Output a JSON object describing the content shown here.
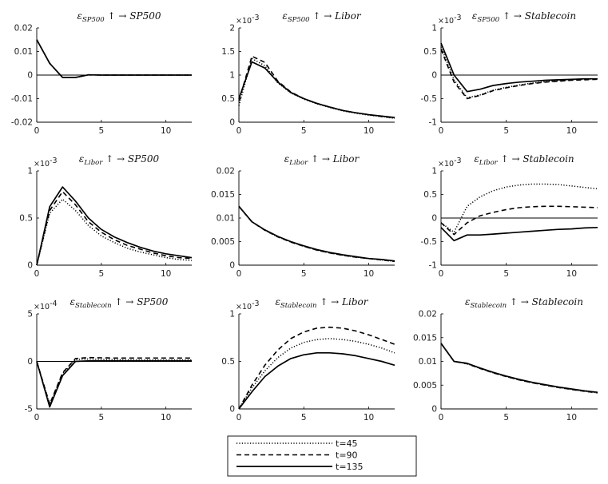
{
  "chart_data": {
    "type": "line",
    "x": [
      0,
      1,
      2,
      3,
      4,
      5,
      6,
      7,
      8,
      9,
      10,
      11,
      12
    ],
    "legend": {
      "placement": "bottom-center",
      "entries": [
        {
          "label": "t=45",
          "style": "dotted"
        },
        {
          "label": "t=90",
          "style": "dashed"
        },
        {
          "label": "t=135",
          "style": "solid"
        }
      ]
    },
    "panels": [
      {
        "title": {
          "eps": "ε",
          "sub": "SP500",
          "arrow": "↑ →",
          "target": "SP500"
        },
        "xlim": [
          0,
          12
        ],
        "ylim": [
          -0.02,
          0.02
        ],
        "scale": "",
        "yticks": [
          "0.02",
          "0.01",
          "0",
          "-0.01",
          "-0.02"
        ],
        "xticks": [
          "0",
          "5",
          "10"
        ],
        "zero_line": true,
        "series": [
          {
            "name": "t=45",
            "values": [
              0.015,
              0.005,
              -0.001,
              -0.001,
              0.0001,
              0,
              0,
              0,
              0,
              0,
              0,
              0,
              0
            ]
          },
          {
            "name": "t=90",
            "values": [
              0.015,
              0.005,
              -0.001,
              -0.001,
              0.0001,
              0,
              0,
              0,
              0,
              0,
              0,
              0,
              0
            ]
          },
          {
            "name": "t=135",
            "values": [
              0.015,
              0.005,
              -0.001,
              -0.001,
              0.0001,
              0,
              0,
              0,
              0,
              0,
              0,
              0,
              0
            ]
          }
        ]
      },
      {
        "title": {
          "eps": "ε",
          "sub": "SP500",
          "arrow": "↑ →",
          "target": "Libor"
        },
        "xlim": [
          0,
          12
        ],
        "ylim": [
          0,
          2
        ],
        "scale": "×10",
        "scale_exp": "-3",
        "yticks": [
          "2",
          "1.5",
          "1",
          "0.5",
          "0"
        ],
        "xticks": [
          "0",
          "5",
          "10"
        ],
        "zero_line": false,
        "series": [
          {
            "name": "t=45",
            "values": [
              0.35,
              1.35,
              1.2,
              0.83,
              0.62,
              0.49,
              0.39,
              0.31,
              0.24,
              0.19,
              0.15,
              0.12,
              0.08
            ]
          },
          {
            "name": "t=90",
            "values": [
              0.45,
              1.4,
              1.27,
              0.87,
              0.64,
              0.5,
              0.4,
              0.32,
              0.25,
              0.2,
              0.16,
              0.12,
              0.09
            ]
          },
          {
            "name": "t=135",
            "values": [
              0.5,
              1.28,
              1.15,
              0.85,
              0.63,
              0.5,
              0.4,
              0.32,
              0.25,
              0.2,
              0.16,
              0.13,
              0.1
            ]
          }
        ]
      },
      {
        "title": {
          "eps": "ε",
          "sub": "SP500",
          "arrow": "↑ →",
          "target": "Stablecoin"
        },
        "xlim": [
          0,
          12
        ],
        "ylim": [
          -1,
          1
        ],
        "scale": "×10",
        "scale_exp": "-3",
        "yticks": [
          "1",
          "0.5",
          "0",
          "-0.5",
          "-1"
        ],
        "xticks": [
          "0",
          "5",
          "10"
        ],
        "zero_line": true,
        "series": [
          {
            "name": "t=45",
            "values": [
              0.6,
              -0.1,
              -0.48,
              -0.42,
              -0.32,
              -0.26,
              -0.21,
              -0.17,
              -0.14,
              -0.12,
              -0.1,
              -0.09,
              -0.08
            ]
          },
          {
            "name": "t=90",
            "values": [
              0.55,
              -0.15,
              -0.5,
              -0.43,
              -0.33,
              -0.27,
              -0.22,
              -0.18,
              -0.15,
              -0.13,
              -0.11,
              -0.1,
              -0.09
            ]
          },
          {
            "name": "t=135",
            "values": [
              0.68,
              0.0,
              -0.35,
              -0.3,
              -0.22,
              -0.18,
              -0.15,
              -0.13,
              -0.11,
              -0.1,
              -0.09,
              -0.08,
              -0.08
            ]
          }
        ]
      },
      {
        "title": {
          "eps": "ε",
          "sub": "Libor",
          "arrow": "↑ →",
          "target": "SP500"
        },
        "xlim": [
          0,
          12
        ],
        "ylim": [
          0,
          1
        ],
        "scale": "×10",
        "scale_exp": "-3",
        "yticks": [
          "1",
          "0.5",
          "0"
        ],
        "xticks": [
          "0",
          "5",
          "10"
        ],
        "zero_line": false,
        "series": [
          {
            "name": "t=45",
            "values": [
              0,
              0.55,
              0.7,
              0.58,
              0.42,
              0.31,
              0.24,
              0.18,
              0.14,
              0.11,
              0.08,
              0.06,
              0.05
            ]
          },
          {
            "name": "t=90",
            "values": [
              0,
              0.58,
              0.78,
              0.64,
              0.46,
              0.35,
              0.27,
              0.21,
              0.17,
              0.13,
              0.1,
              0.08,
              0.07
            ]
          },
          {
            "name": "t=135",
            "values": [
              0,
              0.62,
              0.83,
              0.68,
              0.5,
              0.38,
              0.3,
              0.24,
              0.19,
              0.15,
              0.12,
              0.1,
              0.08
            ]
          }
        ]
      },
      {
        "title": {
          "eps": "ε",
          "sub": "Libor",
          "arrow": "↑ →",
          "target": "Libor"
        },
        "xlim": [
          0,
          12
        ],
        "ylim": [
          0,
          0.02
        ],
        "scale": "",
        "yticks": [
          "0.02",
          "0.015",
          "0.01",
          "0.005",
          "0"
        ],
        "xticks": [
          "0",
          "5",
          "10"
        ],
        "zero_line": false,
        "series": [
          {
            "name": "t=45",
            "values": [
              0.0125,
              0.0092,
              0.0074,
              0.006,
              0.0049,
              0.004,
              0.0032,
              0.0026,
              0.0021,
              0.0017,
              0.0014,
              0.0011,
              0.0008
            ]
          },
          {
            "name": "t=90",
            "values": [
              0.0125,
              0.0092,
              0.0074,
              0.006,
              0.0049,
              0.004,
              0.0032,
              0.0026,
              0.0021,
              0.0017,
              0.0014,
              0.0011,
              0.0008
            ]
          },
          {
            "name": "t=135",
            "values": [
              0.0125,
              0.0092,
              0.0075,
              0.0061,
              0.005,
              0.0041,
              0.0033,
              0.0027,
              0.0022,
              0.0018,
              0.0014,
              0.0012,
              0.0009
            ]
          }
        ]
      },
      {
        "title": {
          "eps": "ε",
          "sub": "Libor",
          "arrow": "↑ →",
          "target": "Stablecoin"
        },
        "xlim": [
          0,
          12
        ],
        "ylim": [
          -1,
          1
        ],
        "scale": "×10",
        "scale_exp": "-3",
        "yticks": [
          "1",
          "0.5",
          "0",
          "-0.5",
          "-1"
        ],
        "xticks": [
          "0",
          "5",
          "10"
        ],
        "zero_line": true,
        "series": [
          {
            "name": "t=45",
            "values": [
              -0.1,
              -0.3,
              0.25,
              0.45,
              0.58,
              0.66,
              0.7,
              0.72,
              0.72,
              0.71,
              0.68,
              0.65,
              0.62
            ]
          },
          {
            "name": "t=90",
            "values": [
              -0.1,
              -0.35,
              -0.1,
              0.05,
              0.12,
              0.18,
              0.22,
              0.24,
              0.25,
              0.25,
              0.24,
              0.23,
              0.22
            ]
          },
          {
            "name": "t=135",
            "values": [
              -0.2,
              -0.48,
              -0.36,
              -0.36,
              -0.34,
              -0.32,
              -0.3,
              -0.28,
              -0.26,
              -0.24,
              -0.23,
              -0.21,
              -0.2
            ]
          }
        ]
      },
      {
        "title": {
          "eps": "ε",
          "sub": "Stablecoin",
          "arrow": "↑ →",
          "target": "SP500"
        },
        "xlim": [
          0,
          12
        ],
        "ylim": [
          -5,
          5
        ],
        "scale": "×10",
        "scale_exp": "-4",
        "yticks": [
          "5",
          "0",
          "-5"
        ],
        "xticks": [
          "0",
          "5",
          "10"
        ],
        "zero_line": true,
        "series": [
          {
            "name": "t=45",
            "values": [
              0,
              -4.5,
              -1.3,
              0.2,
              0.25,
              0.2,
              0.18,
              0.16,
              0.15,
              0.15,
              0.15,
              0.15,
              0.15
            ]
          },
          {
            "name": "t=90",
            "values": [
              0,
              -4.5,
              -1.2,
              0.3,
              0.4,
              0.38,
              0.35,
              0.35,
              0.35,
              0.35,
              0.35,
              0.35,
              0.35
            ]
          },
          {
            "name": "t=135",
            "values": [
              0,
              -4.8,
              -1.5,
              0.0,
              0.05,
              0.05,
              0.05,
              0.05,
              0.05,
              0.05,
              0.05,
              0.05,
              0.05
            ]
          }
        ]
      },
      {
        "title": {
          "eps": "ε",
          "sub": "Stablecoin",
          "arrow": "↑ →",
          "target": "Libor"
        },
        "xlim": [
          0,
          12
        ],
        "ylim": [
          0,
          1
        ],
        "scale": "×10",
        "scale_exp": "-3",
        "yticks": [
          "1",
          "0.5",
          "0"
        ],
        "xticks": [
          "0",
          "5",
          "10"
        ],
        "zero_line": false,
        "series": [
          {
            "name": "t=45",
            "values": [
              0,
              0.22,
              0.4,
              0.54,
              0.64,
              0.7,
              0.73,
              0.74,
              0.73,
              0.71,
              0.68,
              0.64,
              0.59
            ]
          },
          {
            "name": "t=90",
            "values": [
              0,
              0.25,
              0.46,
              0.62,
              0.74,
              0.81,
              0.85,
              0.86,
              0.85,
              0.82,
              0.78,
              0.73,
              0.68
            ]
          },
          {
            "name": "t=135",
            "values": [
              0,
              0.18,
              0.34,
              0.45,
              0.53,
              0.57,
              0.59,
              0.59,
              0.58,
              0.56,
              0.53,
              0.5,
              0.46
            ]
          }
        ]
      },
      {
        "title": {
          "eps": "ε",
          "sub": "Stablecoin",
          "arrow": "↑ →",
          "target": "Stablecoin"
        },
        "xlim": [
          0,
          12
        ],
        "ylim": [
          0,
          0.02
        ],
        "scale": "",
        "yticks": [
          "0.02",
          "0.015",
          "0.01",
          "0.005",
          "0"
        ],
        "xticks": [
          "0",
          "5",
          "10"
        ],
        "zero_line": false,
        "series": [
          {
            "name": "t=45",
            "values": [
              0.0138,
              0.01,
              0.0095,
              0.0085,
              0.0076,
              0.0068,
              0.0061,
              0.0055,
              0.005,
              0.0045,
              0.0041,
              0.0037,
              0.0034
            ]
          },
          {
            "name": "t=90",
            "values": [
              0.0138,
              0.01,
              0.0095,
              0.0085,
              0.0076,
              0.0068,
              0.0061,
              0.0055,
              0.005,
              0.0045,
              0.0041,
              0.0037,
              0.0034
            ]
          },
          {
            "name": "t=135",
            "values": [
              0.0138,
              0.01,
              0.0096,
              0.0086,
              0.0077,
              0.0069,
              0.0062,
              0.0056,
              0.0051,
              0.0046,
              0.0042,
              0.0038,
              0.0035
            ]
          }
        ]
      }
    ]
  }
}
